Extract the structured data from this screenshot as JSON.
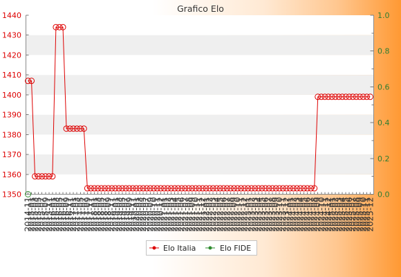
{
  "colors": {
    "left_axis_labels": "#dd0000",
    "right_axis_labels": "#2e7d32",
    "band": "#ffffff",
    "band_alt": "#efefef",
    "background_start": "#ffffff",
    "background_end": "#ff9933"
  },
  "chart_data": {
    "type": "line",
    "title": "Grafico Elo",
    "x": [
      "2014-11",
      "2015-01",
      "2015-03",
      "2015-05",
      "2015-07",
      "2015-09",
      "2015-11",
      "2016-01",
      "2016-03",
      "2016-05",
      "2016-07",
      "2016-09",
      "2016-11",
      "2017-01",
      "2017-03",
      "2017-05",
      "2017-07",
      "2017-09",
      "2017-11",
      "2018-01",
      "2018-03",
      "2018-05",
      "2018-07",
      "2018-09",
      "2018-11",
      "2019-01",
      "2019-03",
      "2019-05",
      "2019-07",
      "2019-09",
      "2019-11",
      "2020-01",
      "2020-03",
      "2020-05",
      "2020-07",
      "2020-09",
      "2020-10",
      "2020-11",
      "2020-12",
      "2021-01",
      "2021-02",
      "2021-03",
      "2021-04",
      "2021-05",
      "2021-06",
      "2021-07",
      "2021-08",
      "2021-09",
      "2021-10",
      "2021-11",
      "2021-12",
      "2022-01",
      "2022-02",
      "2022-03",
      "2022-04",
      "2022-05",
      "2022-06",
      "2022-07",
      "2022-08",
      "2022-09",
      "2022-10",
      "2022-11",
      "2022-12",
      "2023-01",
      "2023-02",
      "2023-03",
      "2023-04",
      "2023-05",
      "2023-06",
      "2023-07",
      "2023-08",
      "2023-09",
      "2023-10",
      "2023-11",
      "2023-12",
      "2024-01",
      "2024-02",
      "2024-03",
      "2024-04",
      "2024-05",
      "2024-06",
      "2024-07",
      "2024-08",
      "2024-09",
      "2024-10",
      "2024-11",
      "2024-12",
      "2025-01",
      "2025-02",
      "2025-03",
      "2025-04",
      "2025-05",
      "2025-06",
      "2025-07",
      "2025-08",
      "2025-09",
      "2025-10",
      "2025-11",
      "2025-12"
    ],
    "series": [
      {
        "name": "Elo Italia",
        "axis": "left",
        "color": "#dd0000",
        "values": [
          1407,
          1407,
          1359,
          1359,
          1359,
          1359,
          1359,
          1359,
          1434,
          1434,
          1434,
          1383,
          1383,
          1383,
          1383,
          1383,
          1383,
          1353,
          1353,
          1353,
          1353,
          1353,
          1353,
          1353,
          1353,
          1353,
          1353,
          1353,
          1353,
          1353,
          1353,
          1353,
          1353,
          1353,
          1353,
          1353,
          1353,
          1353,
          1353,
          1353,
          1353,
          1353,
          1353,
          1353,
          1353,
          1353,
          1353,
          1353,
          1353,
          1353,
          1353,
          1353,
          1353,
          1353,
          1353,
          1353,
          1353,
          1353,
          1353,
          1353,
          1353,
          1353,
          1353,
          1353,
          1353,
          1353,
          1353,
          1353,
          1353,
          1353,
          1353,
          1353,
          1353,
          1353,
          1353,
          1353,
          1353,
          1353,
          1353,
          1353,
          1353,
          1353,
          1353,
          1399,
          1399,
          1399,
          1399,
          1399,
          1399,
          1399,
          1399,
          1399,
          1399,
          1399,
          1399,
          1399,
          1399,
          1399,
          1399
        ]
      },
      {
        "name": "Elo FIDE",
        "axis": "right",
        "color": "#2e8b2e",
        "x": [
          "2014-11"
        ],
        "values": [
          0
        ]
      }
    ],
    "y_left": {
      "range": [
        1350,
        1440
      ],
      "ticks": [
        1350,
        1360,
        1370,
        1380,
        1390,
        1400,
        1410,
        1420,
        1430,
        1440
      ]
    },
    "y_right": {
      "range": [
        0,
        1
      ],
      "ticks": [
        "0.0",
        "0.2",
        "0.4",
        "0.6",
        "0.8",
        "1.0"
      ]
    },
    "grid": true,
    "legend_position": "bottom"
  }
}
